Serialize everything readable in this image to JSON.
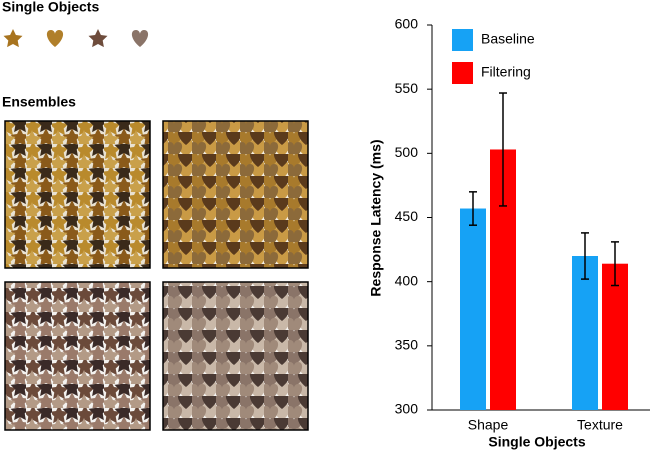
{
  "panels": {
    "single_objects_label": "Single Objects",
    "ensembles_label": "Ensembles"
  },
  "chart_data": {
    "type": "bar",
    "xlabel": "Single Objects",
    "ylabel": "Response Latency (ms)",
    "categories": [
      "Shape",
      "Texture"
    ],
    "series": [
      {
        "name": "Baseline",
        "color": "#16a2f5",
        "values": [
          457,
          420
        ],
        "errors": [
          13,
          18
        ]
      },
      {
        "name": "Filtering",
        "color": "#ff0000",
        "values": [
          503,
          414
        ],
        "errors": [
          44,
          17
        ]
      }
    ],
    "ylim": [
      300,
      600
    ],
    "yticks": [
      300,
      350,
      400,
      450,
      500,
      550,
      600
    ],
    "legend": "upper-left"
  }
}
